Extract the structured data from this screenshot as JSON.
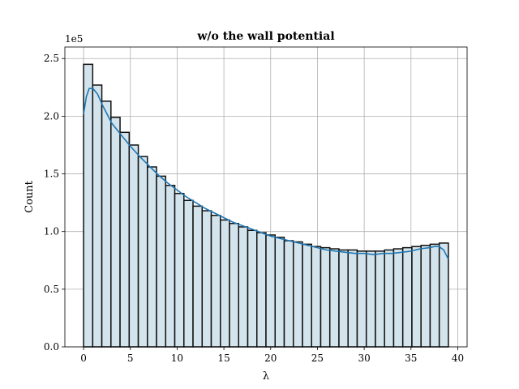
{
  "chart_data": {
    "type": "bar",
    "subtype": "histogram-with-kde",
    "title": "w/o the wall potential",
    "xlabel": "λ",
    "ylabel": "Count",
    "y_offset_label": "1e5",
    "xlim": [
      -2,
      41
    ],
    "ylim": [
      0,
      2.6
    ],
    "y_unit_multiplier": 100000,
    "grid": true,
    "x_ticks": [
      0,
      5,
      10,
      15,
      20,
      25,
      30,
      35,
      40
    ],
    "x_tick_labels": [
      "0",
      "5",
      "10",
      "15",
      "20",
      "25",
      "30",
      "35",
      "40"
    ],
    "y_ticks": [
      0.0,
      0.5,
      1.0,
      1.5,
      2.0,
      2.5
    ],
    "y_tick_labels": [
      "0.0",
      "0.5",
      "1.0",
      "1.5",
      "2.0",
      "2.5"
    ],
    "bin_edges": [
      0,
      0.975,
      1.95,
      2.925,
      3.9,
      4.875,
      5.85,
      6.825,
      7.8,
      8.775,
      9.75,
      10.725,
      11.7,
      12.675,
      13.65,
      14.625,
      15.6,
      16.575,
      17.55,
      18.525,
      19.5,
      20.475,
      21.45,
      22.425,
      23.4,
      24.375,
      25.35,
      26.325,
      27.3,
      28.275,
      29.25,
      30.225,
      31.2,
      32.175,
      33.15,
      34.125,
      35.1,
      36.075,
      37.05,
      38.025,
      39.0
    ],
    "values": [
      2.45,
      2.27,
      2.13,
      1.99,
      1.86,
      1.75,
      1.65,
      1.56,
      1.48,
      1.4,
      1.33,
      1.27,
      1.22,
      1.18,
      1.14,
      1.1,
      1.07,
      1.04,
      1.01,
      0.99,
      0.97,
      0.95,
      0.92,
      0.91,
      0.89,
      0.87,
      0.86,
      0.85,
      0.84,
      0.84,
      0.83,
      0.83,
      0.83,
      0.84,
      0.85,
      0.86,
      0.87,
      0.88,
      0.89,
      0.9
    ],
    "kde_x": [
      0,
      0.3,
      0.6,
      1.0,
      1.5,
      2.0,
      2.5,
      3.0,
      4.0,
      5.0,
      6.0,
      7.0,
      8.0,
      9.0,
      10.0,
      11.0,
      12.0,
      13.0,
      14.0,
      15.0,
      16.0,
      17.0,
      18.0,
      19.0,
      20.0,
      21.0,
      22.0,
      23.0,
      24.0,
      25.0,
      26.0,
      27.0,
      28.0,
      29.0,
      30.0,
      31.0,
      32.0,
      33.0,
      34.0,
      35.0,
      36.0,
      37.0,
      37.5,
      38.0,
      38.5,
      39.0
    ],
    "kde_y": [
      2.02,
      2.17,
      2.24,
      2.24,
      2.19,
      2.1,
      2.02,
      1.94,
      1.84,
      1.74,
      1.65,
      1.57,
      1.49,
      1.42,
      1.36,
      1.3,
      1.25,
      1.2,
      1.16,
      1.12,
      1.08,
      1.05,
      1.02,
      0.99,
      0.96,
      0.94,
      0.92,
      0.9,
      0.88,
      0.86,
      0.84,
      0.83,
      0.82,
      0.81,
      0.81,
      0.8,
      0.81,
      0.81,
      0.82,
      0.83,
      0.85,
      0.86,
      0.87,
      0.87,
      0.84,
      0.76
    ],
    "bar_fill_color": "#d4e4ec",
    "kde_color": "#1f77b4"
  }
}
